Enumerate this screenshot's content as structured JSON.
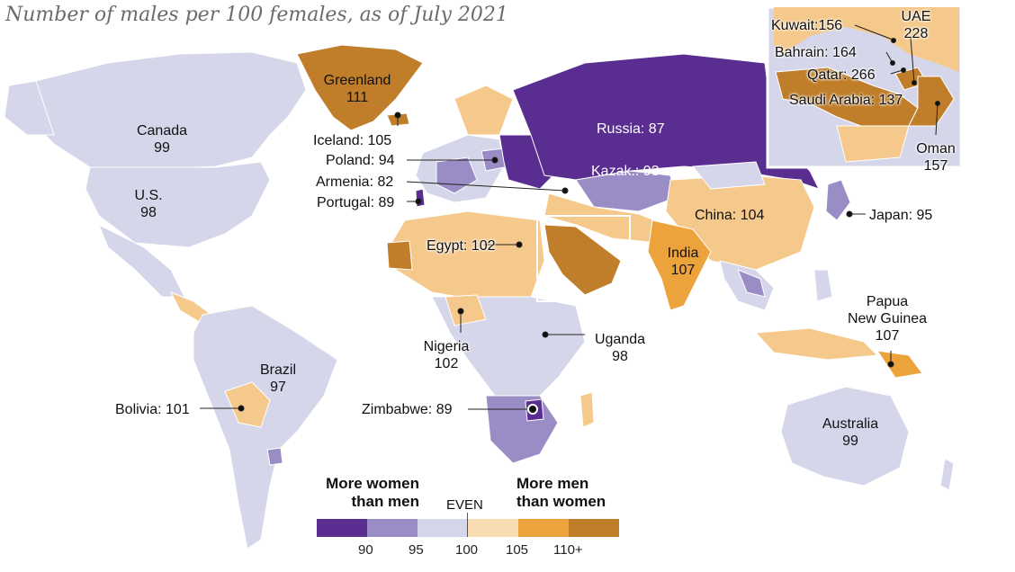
{
  "title": "Number of males per 100 females, as of July 2021",
  "colors": {
    "lt90": "#5a2d91",
    "90to95": "#9a8dc6",
    "95to100": "#d5d6ea",
    "100to105": "#f5c98b",
    "105to110": "#eda33c",
    "110plus": "#c07e2a",
    "water": "#ffffff",
    "border": "#ffffff"
  },
  "labels": {
    "greenland": {
      "name": "Greenland",
      "value": "111"
    },
    "canada": {
      "name": "Canada",
      "value": "99"
    },
    "us": {
      "name": "U.S.",
      "value": "98"
    },
    "iceland": "Iceland: 105",
    "poland": "Poland: 94",
    "armenia": "Armenia: 82",
    "portugal": "Portugal: 89",
    "russia": "Russia: 87",
    "kazak": "Kazak.: 93",
    "china": "China: 104",
    "japan": "Japan: 95",
    "egypt": "Egypt: 102",
    "india": {
      "name": "India",
      "value": "107"
    },
    "nigeria": {
      "name": "Nigeria",
      "value": "102"
    },
    "uganda": {
      "name": "Uganda",
      "value": "98"
    },
    "zimbabwe": "Zimbabwe: 89",
    "brazil": {
      "name": "Brazil",
      "value": "97"
    },
    "bolivia": "Bolivia: 101",
    "png": {
      "line1": "Papua",
      "line2": "New Guinea",
      "value": "107"
    },
    "australia": {
      "name": "Australia",
      "value": "99"
    }
  },
  "inset": {
    "kuwait": "Kuwait:156",
    "uae": {
      "name": "UAE",
      "value": "228"
    },
    "bahrain": "Bahrain: 164",
    "qatar": "Qatar: 266",
    "saudi": "Saudi Arabia: 137",
    "oman": {
      "name": "Oman",
      "value": "157"
    }
  },
  "legend": {
    "left_heading": [
      "More women",
      "than men"
    ],
    "even": "EVEN",
    "right_heading": [
      "More men",
      "than women"
    ],
    "ticks": [
      "90",
      "95",
      "100",
      "105",
      "110+"
    ]
  }
}
